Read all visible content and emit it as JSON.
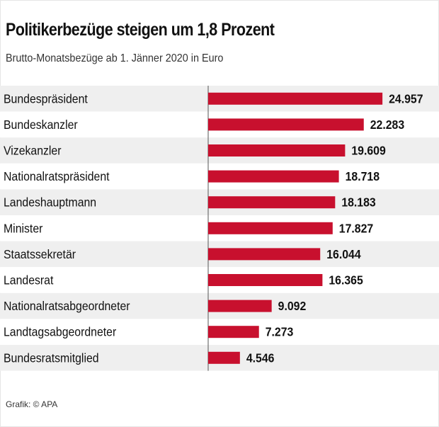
{
  "header": {
    "title": "Politikerbezüge steigen um 1,8 Prozent",
    "subtitle": "Brutto-Monatsbezüge ab 1. Jänner 2020 in Euro"
  },
  "footer": {
    "source": "Grafik: © APA"
  },
  "colors": {
    "bar": "#c8102e",
    "row_shaded": "#efefef",
    "row_plain": "#ffffff",
    "text": "#111111"
  },
  "chart_data": {
    "type": "bar",
    "orientation": "horizontal",
    "title": "Politikerbezüge steigen um 1,8 Prozent",
    "subtitle": "Brutto-Monatsbezüge ab 1. Jänner 2020 in Euro",
    "xlabel": "",
    "ylabel": "",
    "xlim": [
      0,
      29000
    ],
    "grid": false,
    "categories": [
      "Bundespräsident",
      "Bundeskanzler",
      "Vizekanzler",
      "Nationalratspräsident",
      "Landeshauptmann",
      "Minister",
      "Staatssekretär",
      "Landesrat",
      "Nationalratsabgeordneter",
      "Landtagsabgeordneter",
      "Bundesratsmitglied"
    ],
    "values": [
      24957,
      22283,
      19609,
      18718,
      18183,
      17827,
      16044,
      16365,
      9092,
      7273,
      4546
    ],
    "value_labels": [
      "24.957",
      "22.283",
      "19.609",
      "18.718",
      "18.183",
      "17.827",
      "16.044",
      "16.365",
      "9.092",
      "7.273",
      "4.546"
    ]
  }
}
